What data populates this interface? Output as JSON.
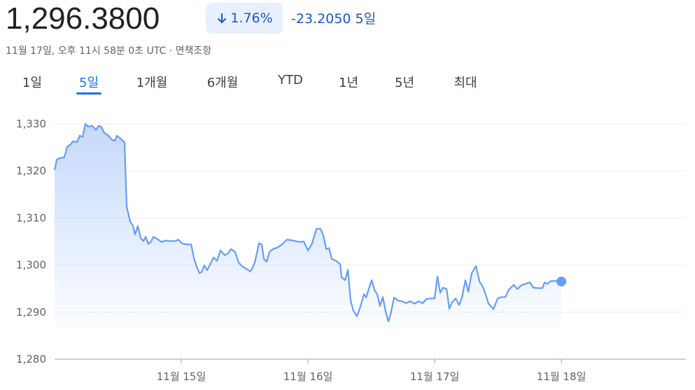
{
  "header": {
    "price": "1,296.3800",
    "percent_change": "1.76%",
    "change": "-23.2050",
    "period": "5일",
    "timestamp": "11월 17일, 오후 11시 58분 0초 UTC · ",
    "disclaimer": "면책조항"
  },
  "tabs": [
    "1일",
    "5일",
    "1개월",
    "6개월",
    "YTD",
    "1년",
    "5년",
    "최대"
  ],
  "selected_tab": 1,
  "chart_data": {
    "type": "area",
    "color": "#669df6",
    "grid": true,
    "xlim": [
      0,
      4.983
    ],
    "ylim": [
      1280,
      1334
    ],
    "xticks": [
      {
        "value": 1,
        "label": "11월 15일"
      },
      {
        "value": 2,
        "label": "11월 16일"
      },
      {
        "value": 3,
        "label": "11월 17일"
      },
      {
        "value": 4,
        "label": "11월 18일"
      }
    ],
    "yticks": [
      {
        "value": 1280,
        "label": "1,280"
      },
      {
        "value": 1290,
        "label": "1,290"
      },
      {
        "value": 1300,
        "label": "1,300"
      },
      {
        "value": 1310,
        "label": "1,310"
      },
      {
        "value": 1320,
        "label": "1,320"
      },
      {
        "value": 1330,
        "label": "1,330"
      }
    ],
    "x": [
      0,
      0.017,
      0.039,
      0.077,
      0.099,
      0.122,
      0.144,
      0.177,
      0.199,
      0.221,
      0.243,
      0.265,
      0.298,
      0.326,
      0.348,
      0.37,
      0.392,
      0.425,
      0.453,
      0.475,
      0.492,
      0.519,
      0.552,
      0.569,
      0.597,
      0.619,
      0.635,
      0.657,
      0.68,
      0.702,
      0.718,
      0.74,
      0.762,
      0.779,
      0.812,
      0.845,
      0.878,
      0.917,
      0.95,
      0.978,
      1.006,
      1.039,
      1.077,
      1.099,
      1.122,
      1.144,
      1.16,
      1.182,
      1.204,
      1.227,
      1.254,
      1.282,
      1.309,
      1.343,
      1.37,
      1.392,
      1.425,
      1.453,
      1.486,
      1.514,
      1.547,
      1.58,
      1.613,
      1.635,
      1.652,
      1.674,
      1.696,
      1.724,
      1.757,
      1.796,
      1.834,
      1.862,
      1.901,
      1.934,
      1.967,
      2.0,
      2.033,
      2.066,
      2.099,
      2.122,
      2.144,
      2.166,
      2.188,
      2.221,
      2.254,
      2.265,
      2.293,
      2.315,
      2.337,
      2.359,
      2.387,
      2.414,
      2.442,
      2.459,
      2.481,
      2.503,
      2.525,
      2.547,
      2.569,
      2.591,
      2.613,
      2.635,
      2.652,
      2.68,
      2.707,
      2.74,
      2.773,
      2.807,
      2.84,
      2.873,
      2.906,
      2.934,
      2.972,
      3.0,
      3.022,
      3.044,
      3.066,
      3.094,
      3.116,
      3.138,
      3.166,
      3.193,
      3.215,
      3.243,
      3.265,
      3.293,
      3.326,
      3.354,
      3.376,
      3.398,
      3.425,
      3.464,
      3.497,
      3.525,
      3.558,
      3.586,
      3.624,
      3.652,
      3.685,
      3.724,
      3.751,
      3.779,
      3.812,
      3.851,
      3.867,
      3.89,
      3.917,
      3.961,
      4.0
    ],
    "values": [
      1320.2,
      1322.4,
      1322.7,
      1322.9,
      1325.1,
      1325.5,
      1326.3,
      1326.1,
      1327.5,
      1327.2,
      1330,
      1329.4,
      1329.6,
      1328.7,
      1329.6,
      1329.3,
      1328.1,
      1327.5,
      1326.6,
      1326.4,
      1327.5,
      1326.9,
      1326.1,
      1312.4,
      1309.2,
      1308.3,
      1306.5,
      1308.3,
      1305.7,
      1305.1,
      1306.0,
      1304.5,
      1305.0,
      1306.0,
      1305.5,
      1304.9,
      1305.2,
      1305.1,
      1305.1,
      1305.4,
      1304.6,
      1304.4,
      1304.4,
      1301.6,
      1299.6,
      1298.3,
      1298.5,
      1299.9,
      1298.9,
      1300.1,
      1301.6,
      1300.9,
      1303.1,
      1302.1,
      1302.5,
      1303.4,
      1302.8,
      1300.5,
      1299.6,
      1299.2,
      1298.6,
      1300.5,
      1304.6,
      1304.4,
      1301.3,
      1300.7,
      1302.8,
      1303.4,
      1303.7,
      1304.4,
      1305.4,
      1305.3,
      1305.1,
      1304.9,
      1305.0,
      1303.1,
      1304.6,
      1307.7,
      1307.7,
      1306.2,
      1303.4,
      1303.6,
      1301.3,
      1300.9,
      1300.2,
      1297.4,
      1296.8,
      1299.0,
      1292.4,
      1290.3,
      1289.1,
      1291.2,
      1293.8,
      1293.1,
      1295.0,
      1296.8,
      1294.7,
      1293.8,
      1291.3,
      1293.2,
      1290.1,
      1288.0,
      1289.6,
      1293.1,
      1292.5,
      1292.3,
      1291.9,
      1292.3,
      1291.8,
      1292.3,
      1291.9,
      1292.8,
      1292.9,
      1292.9,
      1297.6,
      1294.1,
      1295.2,
      1294.9,
      1290.7,
      1292.1,
      1292.9,
      1291.5,
      1293.1,
      1296.8,
      1294.3,
      1298.3,
      1299.8,
      1296.5,
      1295.6,
      1294.1,
      1291.8,
      1290.6,
      1292.9,
      1293.2,
      1293.2,
      1294.8,
      1295.8,
      1294.9,
      1295.7,
      1296.1,
      1296.3,
      1295.2,
      1295.1,
      1295.1,
      1296.3,
      1296.0,
      1296.6,
      1296.6,
      1296.5
    ]
  }
}
